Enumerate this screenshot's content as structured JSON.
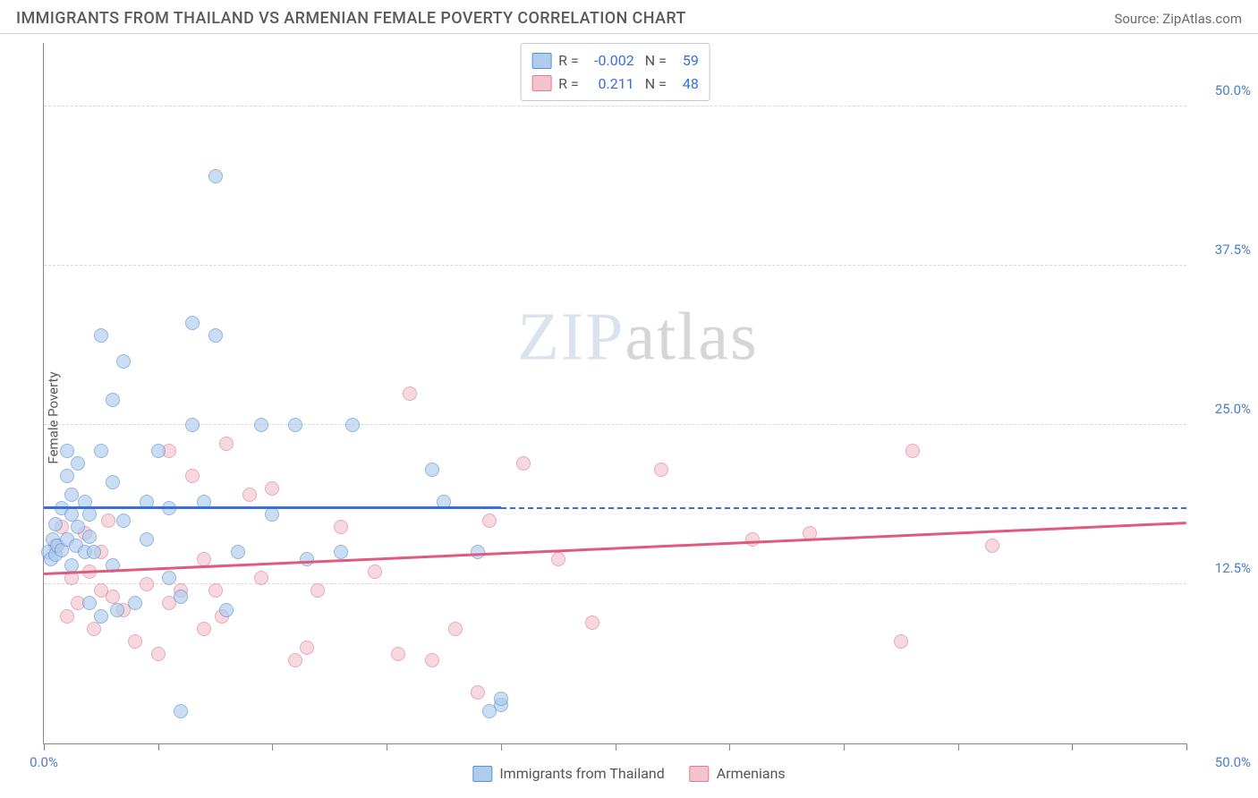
{
  "header": {
    "title": "IMMIGRANTS FROM THAILAND VS ARMENIAN FEMALE POVERTY CORRELATION CHART",
    "source": "Source: ZipAtlas.com"
  },
  "axes": {
    "ylabel": "Female Poverty",
    "xlim": [
      0,
      50
    ],
    "ylim": [
      0,
      55
    ],
    "yticks": [
      12.5,
      25.0,
      37.5,
      50.0
    ],
    "ytick_labels": [
      "12.5%",
      "25.0%",
      "37.5%",
      "50.0%"
    ],
    "xticks_major": [
      0,
      5,
      10,
      15,
      20,
      25,
      30,
      35,
      40,
      45,
      50
    ],
    "x_start_label": "0.0%",
    "x_end_label": "50.0%"
  },
  "style": {
    "background": "#ffffff",
    "grid_color": "#d8d8d8",
    "axis_color": "#888888",
    "tick_label_color": "#4a7dcc",
    "title_color": "#5a5a5a",
    "marker_radius": 8,
    "marker_opacity": 0.65,
    "title_fontsize": 18,
    "label_fontsize": 15
  },
  "watermark": {
    "text_a": "ZIP",
    "text_b": "atlas"
  },
  "series": {
    "thailand": {
      "label": "Immigrants from Thailand",
      "fill": "#aeccee",
      "stroke": "#5b8fd1",
      "trend_color": "#3b6fd6",
      "R": "-0.002",
      "N": "59",
      "trend": {
        "x1": 0,
        "y1": 18.4,
        "x2": 20,
        "y2": 18.4,
        "dash_to_x": 50,
        "dash_to_y": 18.4
      },
      "points": [
        [
          0.2,
          15.0
        ],
        [
          0.3,
          14.5
        ],
        [
          0.4,
          16.0
        ],
        [
          0.5,
          14.8
        ],
        [
          0.5,
          17.2
        ],
        [
          0.6,
          15.5
        ],
        [
          0.8,
          15.2
        ],
        [
          0.8,
          18.5
        ],
        [
          1.0,
          16.0
        ],
        [
          1.0,
          21.0
        ],
        [
          1.0,
          23.0
        ],
        [
          1.2,
          14.0
        ],
        [
          1.2,
          18.0
        ],
        [
          1.2,
          19.5
        ],
        [
          1.4,
          15.5
        ],
        [
          1.5,
          17.0
        ],
        [
          1.5,
          22.0
        ],
        [
          1.8,
          15.0
        ],
        [
          1.8,
          19.0
        ],
        [
          2.0,
          11.0
        ],
        [
          2.0,
          16.2
        ],
        [
          2.0,
          18.0
        ],
        [
          2.2,
          15.0
        ],
        [
          2.5,
          10.0
        ],
        [
          2.5,
          23.0
        ],
        [
          2.5,
          32.0
        ],
        [
          3.0,
          14.0
        ],
        [
          3.0,
          20.5
        ],
        [
          3.0,
          27.0
        ],
        [
          3.2,
          10.5
        ],
        [
          3.5,
          17.5
        ],
        [
          3.5,
          30.0
        ],
        [
          4.0,
          11.0
        ],
        [
          4.5,
          16.0
        ],
        [
          4.5,
          19.0
        ],
        [
          5.0,
          23.0
        ],
        [
          5.5,
          13.0
        ],
        [
          5.5,
          18.5
        ],
        [
          6.0,
          2.5
        ],
        [
          6.0,
          11.5
        ],
        [
          6.5,
          25.0
        ],
        [
          6.5,
          33.0
        ],
        [
          7.0,
          19.0
        ],
        [
          7.5,
          32.0
        ],
        [
          7.5,
          44.5
        ],
        [
          8.0,
          10.5
        ],
        [
          8.5,
          15.0
        ],
        [
          9.5,
          25.0
        ],
        [
          10.0,
          18.0
        ],
        [
          11.0,
          25.0
        ],
        [
          11.5,
          14.5
        ],
        [
          13.0,
          15.0
        ],
        [
          13.5,
          25.0
        ],
        [
          17.0,
          21.5
        ],
        [
          17.5,
          19.0
        ],
        [
          19.0,
          15.0
        ],
        [
          19.5,
          2.5
        ],
        [
          20.0,
          3.0
        ],
        [
          20.0,
          3.5
        ]
      ]
    },
    "armenians": {
      "label": "Armenians",
      "fill": "#f3c4ce",
      "stroke": "#e17a94",
      "trend_color": "#e05a80",
      "R": "0.211",
      "N": "48",
      "trend": {
        "x1": 0,
        "y1": 13.2,
        "x2": 50,
        "y2": 17.2
      },
      "points": [
        [
          0.5,
          15.5
        ],
        [
          0.8,
          17.0
        ],
        [
          1.0,
          10.0
        ],
        [
          1.2,
          13.0
        ],
        [
          1.5,
          11.0
        ],
        [
          1.8,
          16.5
        ],
        [
          2.0,
          13.5
        ],
        [
          2.2,
          9.0
        ],
        [
          2.5,
          12.0
        ],
        [
          2.5,
          15.0
        ],
        [
          2.8,
          17.5
        ],
        [
          3.0,
          11.5
        ],
        [
          3.5,
          10.5
        ],
        [
          4.0,
          8.0
        ],
        [
          4.5,
          12.5
        ],
        [
          5.0,
          7.0
        ],
        [
          5.5,
          11.0
        ],
        [
          5.5,
          23.0
        ],
        [
          6.0,
          12.0
        ],
        [
          6.5,
          21.0
        ],
        [
          7.0,
          9.0
        ],
        [
          7.0,
          14.5
        ],
        [
          7.5,
          12.0
        ],
        [
          7.8,
          10.0
        ],
        [
          8.0,
          23.5
        ],
        [
          9.0,
          19.5
        ],
        [
          9.5,
          13.0
        ],
        [
          10.0,
          20.0
        ],
        [
          11.0,
          6.5
        ],
        [
          11.5,
          7.5
        ],
        [
          12.0,
          12.0
        ],
        [
          13.0,
          17.0
        ],
        [
          14.5,
          13.5
        ],
        [
          15.5,
          7.0
        ],
        [
          16.0,
          27.5
        ],
        [
          17.0,
          6.5
        ],
        [
          18.0,
          9.0
        ],
        [
          19.0,
          4.0
        ],
        [
          19.5,
          17.5
        ],
        [
          21.0,
          22.0
        ],
        [
          22.5,
          14.5
        ],
        [
          24.0,
          9.5
        ],
        [
          27.0,
          21.5
        ],
        [
          31.0,
          16.0
        ],
        [
          33.5,
          16.5
        ],
        [
          37.5,
          8.0
        ],
        [
          38.0,
          23.0
        ],
        [
          41.5,
          15.5
        ]
      ]
    }
  },
  "legend_order": [
    "thailand",
    "armenians"
  ]
}
